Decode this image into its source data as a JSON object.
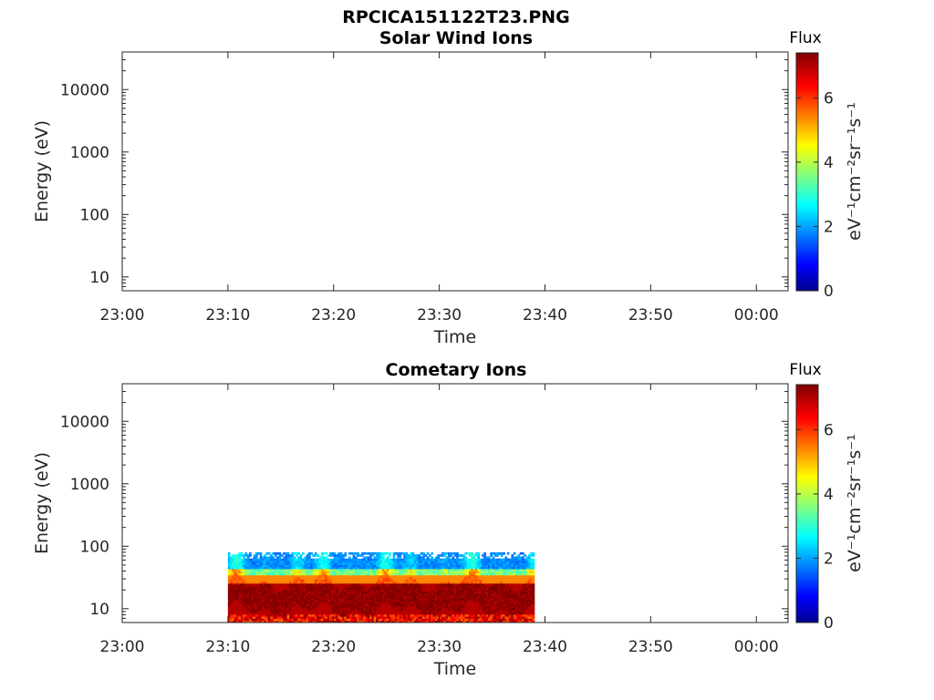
{
  "figure": {
    "title": "RPCICA151122T23.PNG"
  },
  "colormap": {
    "name": "jet",
    "stops": [
      "#00008f",
      "#0000ff",
      "#00ffff",
      "#ffff00",
      "#ff0000",
      "#800000"
    ]
  },
  "chart_data": [
    {
      "type": "heatmap",
      "title": "Solar Wind Ions",
      "xlabel": "Time",
      "ylabel": "Energy (eV)",
      "y_scale": "log",
      "xlim": [
        "23:00",
        "00:03"
      ],
      "ylim": [
        6,
        40000
      ],
      "x_ticks": [
        "23:00",
        "23:10",
        "23:20",
        "23:30",
        "23:40",
        "23:50",
        "00:00"
      ],
      "y_ticks": [
        10,
        100,
        1000,
        10000
      ],
      "y_tick_labels": [
        "10",
        "100",
        "1000",
        "10000"
      ],
      "colorbar": {
        "title": "Flux",
        "label": "eV⁻¹cm⁻²sr⁻¹s⁻¹",
        "range": [
          0,
          7.4
        ],
        "ticks": [
          0,
          2,
          4,
          6
        ],
        "tick_labels": [
          "0",
          "2",
          "4",
          "6"
        ]
      },
      "data_regions": []
    },
    {
      "type": "heatmap",
      "title": "Cometary Ions",
      "xlabel": "Time",
      "ylabel": "Energy (eV)",
      "y_scale": "log",
      "xlim": [
        "23:00",
        "00:03"
      ],
      "ylim": [
        6,
        40000
      ],
      "x_ticks": [
        "23:00",
        "23:10",
        "23:20",
        "23:30",
        "23:40",
        "23:50",
        "00:00"
      ],
      "y_ticks": [
        10,
        100,
        1000,
        10000
      ],
      "y_tick_labels": [
        "10",
        "100",
        "1000",
        "10000"
      ],
      "colorbar": {
        "title": "Flux",
        "label": "eV⁻¹cm⁻²sr⁻¹s⁻¹",
        "range": [
          0,
          7.4
        ],
        "ticks": [
          0,
          2,
          4,
          6
        ],
        "tick_labels": [
          "0",
          "2",
          "4",
          "6"
        ]
      },
      "data_regions": [
        {
          "time_start": "23:10",
          "time_end": "23:39",
          "energy_min": 6,
          "energy_max": 80,
          "bands": [
            {
              "energy_min": 30,
              "energy_max": 80,
              "flux": 3.0
            },
            {
              "energy_min": 20,
              "energy_max": 45,
              "flux": 5.5
            },
            {
              "energy_min": 6,
              "energy_max": 25,
              "flux": 7.0
            }
          ]
        }
      ]
    }
  ]
}
